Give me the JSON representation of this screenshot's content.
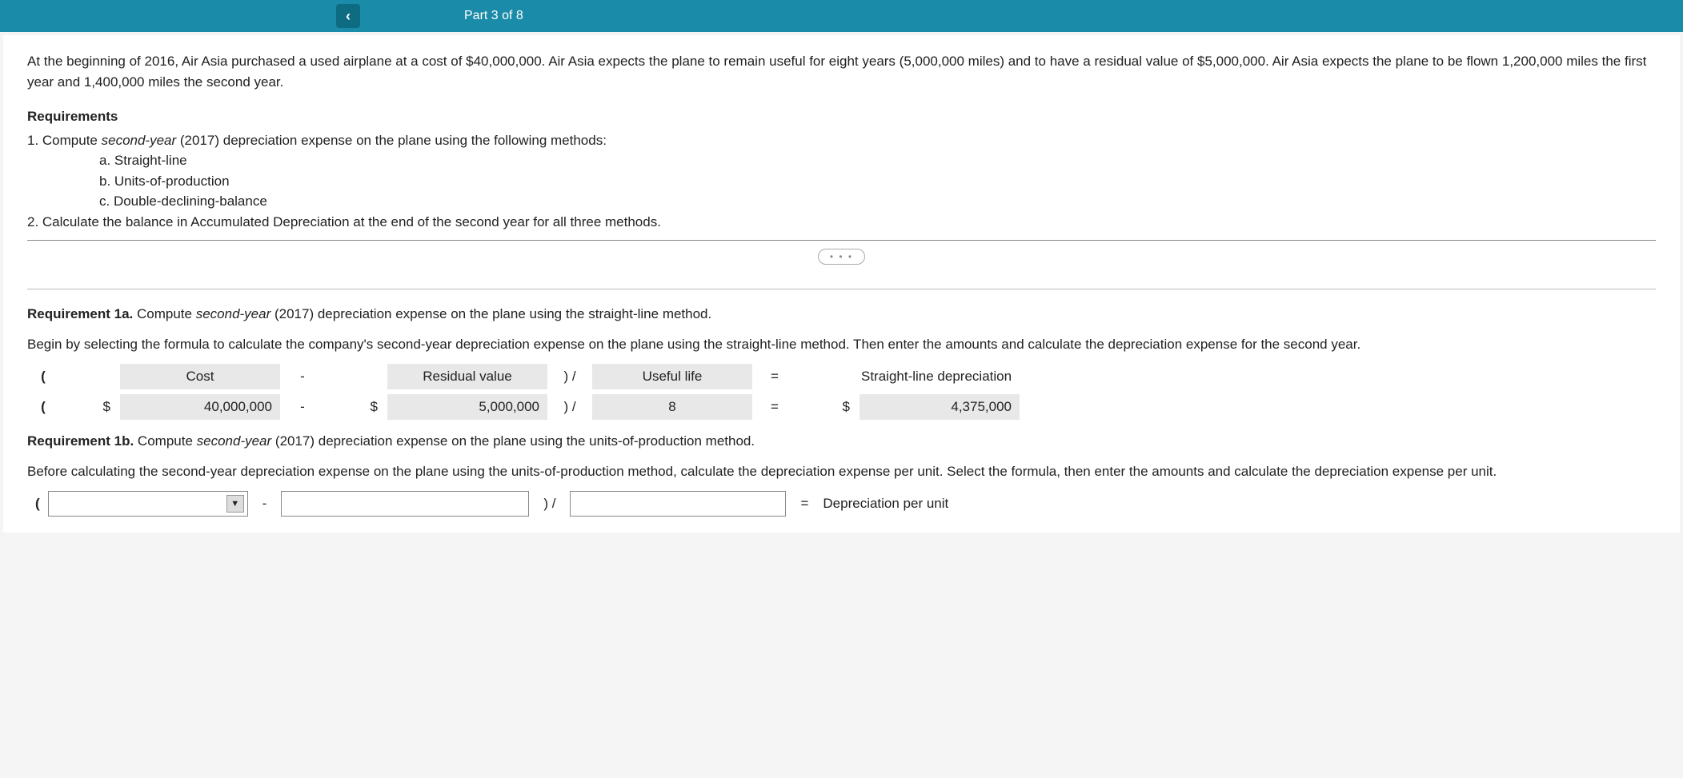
{
  "header": {
    "part_label": "Part 3 of 8",
    "back_icon": "‹"
  },
  "intro": "At the beginning of 2016, Air Asia purchased a used airplane at a cost of $40,000,000. Air Asia expects the plane to remain useful for eight years (5,000,000 miles) and to have a residual value of $5,000,000. Air Asia expects the plane to be flown 1,200,000 miles the first year and 1,400,000 miles the second year.",
  "requirements": {
    "heading": "Requirements",
    "item1_prefix": "1. Compute ",
    "item1_em": "second-year",
    "item1_rest": " (2017) depreciation expense on the plane using the following methods:",
    "sub_a": "a.   Straight-line",
    "sub_b": "b.   Units-of-production",
    "sub_c": "c.   Double-declining-balance",
    "item2": "2. Calculate the balance in Accumulated Depreciation at the end of the second year for all three methods."
  },
  "dots": "• • •",
  "req1a": {
    "label": "Requirement 1a. ",
    "text_pre": "Compute ",
    "text_em": "second-year",
    "text_rest": " (2017) depreciation expense on the plane using the straight-line method.",
    "instruction": "Begin by selecting the formula to calculate the company's second-year depreciation expense on the plane using the straight-line method. Then enter the amounts and calculate the depreciation expense for the second year.",
    "row_labels": {
      "cost": "Cost",
      "residual": "Residual value",
      "useful": "Useful life",
      "result": "Straight-line depreciation"
    },
    "row_ops": {
      "minus": "-",
      "divide": ") /",
      "equals": "="
    },
    "row_values": {
      "cost": "40,000,000",
      "residual": "5,000,000",
      "useful": "8",
      "result": "4,375,000",
      "dollar": "$",
      "paren_open": "("
    }
  },
  "req1b": {
    "label": "Requirement 1b. ",
    "text_pre": "Compute ",
    "text_em": "second-year",
    "text_rest": " (2017) depreciation expense on the plane using the units-of-production method.",
    "instruction": "Before calculating the second-year depreciation expense on the plane using the units-of-production method, calculate the depreciation expense per unit. Select the formula, then enter the amounts and calculate the depreciation expense per unit.",
    "ops": {
      "paren_open": "(",
      "minus": "-",
      "divide": ") /",
      "equals": "="
    },
    "result_label": "Depreciation per unit",
    "arrow": "▼"
  }
}
